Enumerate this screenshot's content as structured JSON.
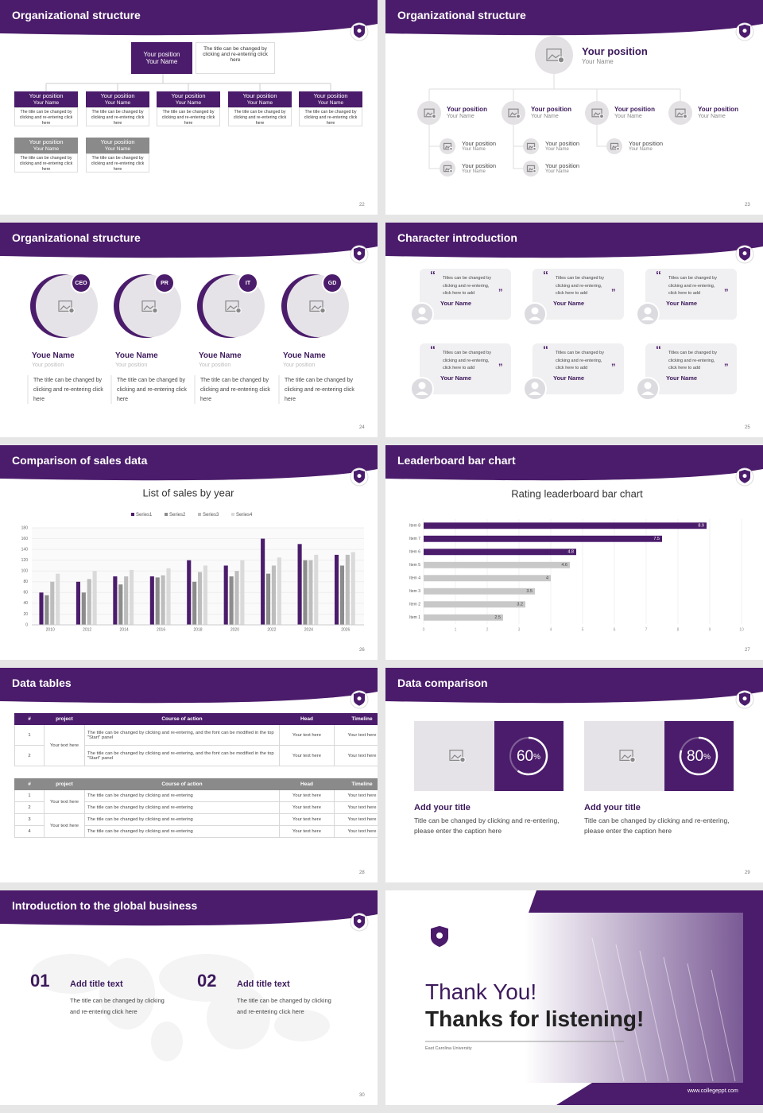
{
  "slides": [
    {
      "title": "Organizational structure",
      "page": "22",
      "top": {
        "position": "Your position",
        "name": "Your Name",
        "note": "The title can be changed by clicking and re-entering click here"
      },
      "boxes": [
        {
          "position": "Your position",
          "name": "Your Name",
          "note": "The title can be changed by clicking and re-entering click here"
        },
        {
          "position": "Your position",
          "name": "Your Name",
          "note": "The title can be changed by clicking and re-entering click here"
        },
        {
          "position": "Your position",
          "name": "Your Name",
          "note": "The title can be changed by clicking and re-entering click here"
        },
        {
          "position": "Your position",
          "name": "Your Name",
          "note": "The title can be changed by clicking and re-entering click here"
        },
        {
          "position": "Your position",
          "name": "Your Name",
          "note": "The title can be changed by clicking and re-entering click here"
        },
        {
          "position": "Your position",
          "name": "Your Name",
          "note": "The title can be changed by clicking and re-entering click here"
        },
        {
          "position": "Your position",
          "name": "Your Name",
          "note": "The title can be changed by clicking and re-entering click here"
        }
      ]
    },
    {
      "title": "Organizational structure",
      "page": "23",
      "top": {
        "position": "Your position",
        "name": "Your Name"
      },
      "members": [
        {
          "position": "Your position",
          "name": "Your Name"
        },
        {
          "position": "Your position",
          "name": "Your Name"
        },
        {
          "position": "Your position",
          "name": "Your Name"
        },
        {
          "position": "Your position",
          "name": "Your Name"
        }
      ],
      "sub": [
        {
          "position": "Your position",
          "name": "Your Name"
        },
        {
          "position": "Your position",
          "name": "Your Name"
        },
        {
          "position": "Your position",
          "name": "Your Name"
        },
        {
          "position": "Your position",
          "name": "Your Name"
        },
        {
          "position": "Your position",
          "name": "Your Name"
        }
      ]
    },
    {
      "title": "Organizational structure",
      "page": "24",
      "people": [
        {
          "badge": "CEO",
          "name": "Youe Name",
          "position": "Your position",
          "note": "The title can be changed by clicking and re-entering click here"
        },
        {
          "badge": "PR",
          "name": "Youe Name",
          "position": "Your position",
          "note": "The title can be changed by clicking and re-entering click here"
        },
        {
          "badge": "IT",
          "name": "Youe Name",
          "position": "Your position",
          "note": "The title can be changed by clicking and re-entering click here"
        },
        {
          "badge": "GD",
          "name": "Youe Name",
          "position": "Your position",
          "note": "The title can be changed by clicking and re-entering click here"
        }
      ]
    },
    {
      "title": "Character introduction",
      "page": "25",
      "cards": [
        {
          "quote": "Titles can be changed by clicking and re-entering, click here to add",
          "name": "Your Name"
        },
        {
          "quote": "Titles can be changed by clicking and re-entering, click here to add",
          "name": "Your Name"
        },
        {
          "quote": "Titles can be changed by clicking and re-entering, click here to add",
          "name": "Your Name"
        },
        {
          "quote": "Titles can be changed by clicking and re-entering, click here to add",
          "name": "Your Name"
        },
        {
          "quote": "Titles can be changed by clicking and re-entering, click here to add",
          "name": "Your Name"
        },
        {
          "quote": "Titles can be changed by clicking and re-entering, click here to add",
          "name": "Your Name"
        }
      ]
    },
    {
      "title": "Comparison of sales data",
      "page": "26"
    },
    {
      "title": "Leaderboard bar chart",
      "page": "27"
    },
    {
      "title": "Data tables",
      "page": "28",
      "tables": [
        {
          "header": [
            "#",
            "project",
            "Course of action",
            "Head",
            "Timeline"
          ],
          "groups": [
            {
              "project": "Your text here",
              "rows": [
                [
                  "1",
                  "The title can be changed by clicking and re-entering, and the font can be modified in the top \"Start\" panel",
                  "Your text here",
                  "Your text here"
                ],
                [
                  "2",
                  "The title can be changed by clicking and re-entering, and the font can be modified in the top \"Start\" panel",
                  "Your text here",
                  "Your text here"
                ]
              ]
            }
          ]
        },
        {
          "header": [
            "#",
            "project",
            "Course of action",
            "Head",
            "Timeline"
          ],
          "groups": [
            {
              "project": "Your text here",
              "rows": [
                [
                  "1",
                  "The title can be changed by clicking and re-entering",
                  "Your text here",
                  "Your text here"
                ],
                [
                  "2",
                  "The title can be changed by clicking and re-entering",
                  "Your text here",
                  "Your text here"
                ]
              ]
            },
            {
              "project": "Your text here",
              "rows": [
                [
                  "3",
                  "The title can be changed by clicking and re-entering",
                  "Your text here",
                  "Your text here"
                ],
                [
                  "4",
                  "The title can be changed by clicking and re-entering",
                  "Your text here",
                  "Your text here"
                ]
              ]
            }
          ]
        }
      ]
    },
    {
      "title": "Data comparison",
      "page": "29",
      "items": [
        {
          "value": 60,
          "unit": "%",
          "heading": "Add your title",
          "text": "Title can be changed by clicking and re-entering, please enter the caption here"
        },
        {
          "value": 80,
          "unit": "%",
          "heading": "Add your title",
          "text": "Title can be changed by clicking and re-entering, please enter the caption here"
        }
      ]
    },
    {
      "title": "Introduction to the global business",
      "page": "30",
      "items": [
        {
          "number": "01",
          "heading": "Add title text",
          "text": "The title can be changed by clicking and re-entering click here"
        },
        {
          "number": "02",
          "heading": "Add title text",
          "text": "The title can be changed by clicking and re-entering click here"
        }
      ]
    },
    {
      "thanks": "Thank You!",
      "subtitle": "Thanks for listening!",
      "school": "East Carolina University",
      "site": "www.collegeppt.com"
    }
  ],
  "chart_data": [
    {
      "type": "bar",
      "title": "List of sales by year",
      "categories": [
        "2010",
        "2012",
        "2014",
        "2016",
        "2018",
        "2020",
        "2022",
        "2024",
        "2026"
      ],
      "series": [
        {
          "name": "Series1",
          "color": "#4b1c6b",
          "values": [
            60,
            80,
            90,
            90,
            120,
            110,
            160,
            150,
            130
          ]
        },
        {
          "name": "Series2",
          "color": "#8c8c8c",
          "values": [
            55,
            60,
            75,
            88,
            80,
            90,
            95,
            120,
            110
          ]
        },
        {
          "name": "Series3",
          "color": "#bdbdbd",
          "values": [
            80,
            85,
            90,
            92,
            98,
            100,
            110,
            120,
            130
          ]
        },
        {
          "name": "Series4",
          "color": "#dadada",
          "values": [
            95,
            100,
            102,
            105,
            110,
            120,
            125,
            130,
            135
          ]
        }
      ],
      "ylim": [
        0,
        180
      ],
      "yticks": [
        0,
        20,
        40,
        60,
        80,
        100,
        120,
        140,
        160,
        180
      ],
      "grid": true,
      "legend": "top"
    },
    {
      "type": "hbar",
      "title": "Rating leaderboard bar chart",
      "categories": [
        "Item 1",
        "Item 2",
        "Item 3",
        "Item 4",
        "Item 5",
        "Item 6",
        "Item 7",
        "Item 8"
      ],
      "values": [
        2.5,
        3.2,
        3.5,
        4,
        4.6,
        4.8,
        7.5,
        8.9
      ],
      "colors": [
        "#c8c8c8",
        "#c8c8c8",
        "#c8c8c8",
        "#c8c8c8",
        "#c8c8c8",
        "#4b1c6b",
        "#4b1c6b",
        "#4b1c6b"
      ],
      "xlim": [
        0,
        10
      ],
      "xticks": [
        0,
        1,
        2,
        3,
        4,
        5,
        6,
        7,
        8,
        9,
        10
      ],
      "grid": true
    }
  ]
}
